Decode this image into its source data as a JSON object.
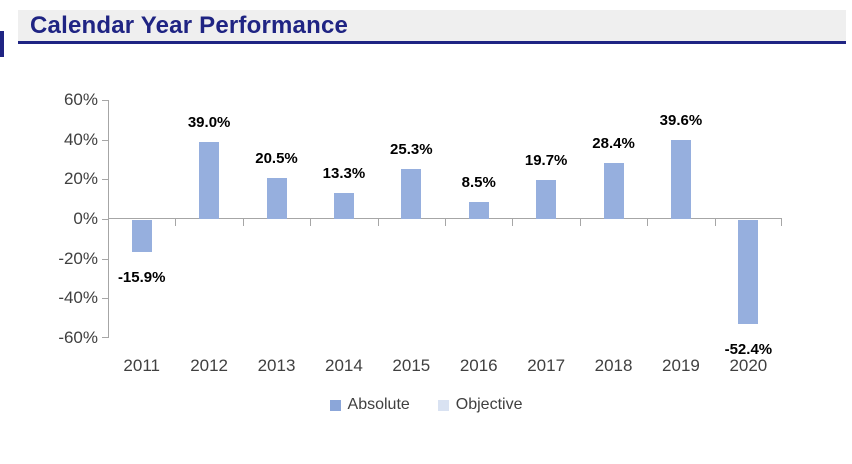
{
  "page": {
    "title": "Calendar Year Performance"
  },
  "chart_data": {
    "type": "bar",
    "title": "Calendar Year Performance",
    "categories": [
      "2011",
      "2012",
      "2013",
      "2014",
      "2015",
      "2016",
      "2017",
      "2018",
      "2019",
      "2020"
    ],
    "series": [
      {
        "name": "Absolute",
        "color": "#96AFDE",
        "values": [
          -15.9,
          39.0,
          20.5,
          13.3,
          25.3,
          8.5,
          19.7,
          28.4,
          39.6,
          -52.4
        ]
      }
    ],
    "data_labels": [
      "-15.9%",
      "39.0%",
      "20.5%",
      "13.3%",
      "25.3%",
      "8.5%",
      "19.7%",
      "28.4%",
      "39.6%",
      "-52.4%"
    ],
    "y_axis": {
      "tick_labels": [
        "60%",
        "40%",
        "20%",
        "0%",
        "-20%",
        "-40%",
        "-60%"
      ],
      "max": 60,
      "min": -60,
      "step": 20
    },
    "grid": false,
    "legend_position": "bottom",
    "legend": [
      {
        "label": "Absolute",
        "color": "#8BA6D9"
      },
      {
        "label": "Objective",
        "color": "#D9E2F2"
      }
    ]
  },
  "colors": {
    "title_text": "#1F2483",
    "title_bg": "#EFEFEF",
    "axis": "#A6A6A6",
    "data_label": "#000000"
  }
}
